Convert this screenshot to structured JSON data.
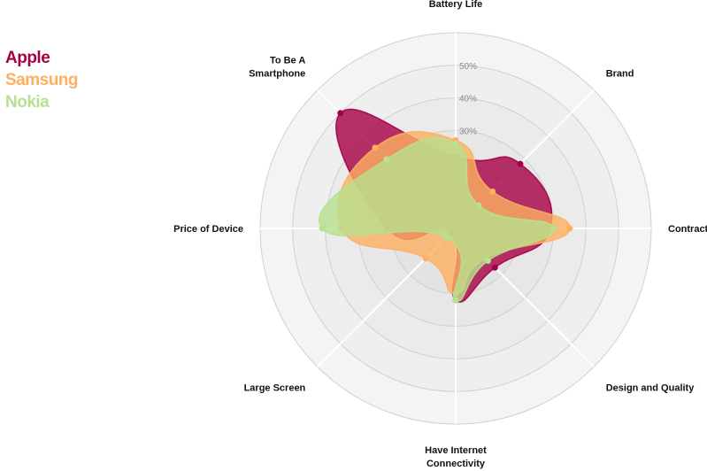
{
  "chart_data": {
    "type": "radar",
    "axes": [
      "Battery Life",
      "Brand",
      "Contract",
      "Design and Quality",
      "Have Internet Connectivity",
      "Large Screen",
      "Price of Device",
      "To Be A Smartphone"
    ],
    "ticks": [
      "30%",
      "40%",
      "50%"
    ],
    "rmax": 0.6,
    "series": [
      {
        "name": "Apple",
        "color": "#a50045",
        "values": [
          0.22,
          0.28,
          0.29,
          0.17,
          0.22,
          0.02,
          0.21,
          0.5
        ]
      },
      {
        "name": "Samsung",
        "color": "#fdb060",
        "values": [
          0.27,
          0.16,
          0.35,
          0.13,
          0.2,
          0.13,
          0.35,
          0.35
        ]
      },
      {
        "name": "Nokia",
        "color": "#b8e08e",
        "values": [
          0.26,
          0.1,
          0.3,
          0.14,
          0.22,
          0.04,
          0.41,
          0.3
        ]
      }
    ]
  }
}
